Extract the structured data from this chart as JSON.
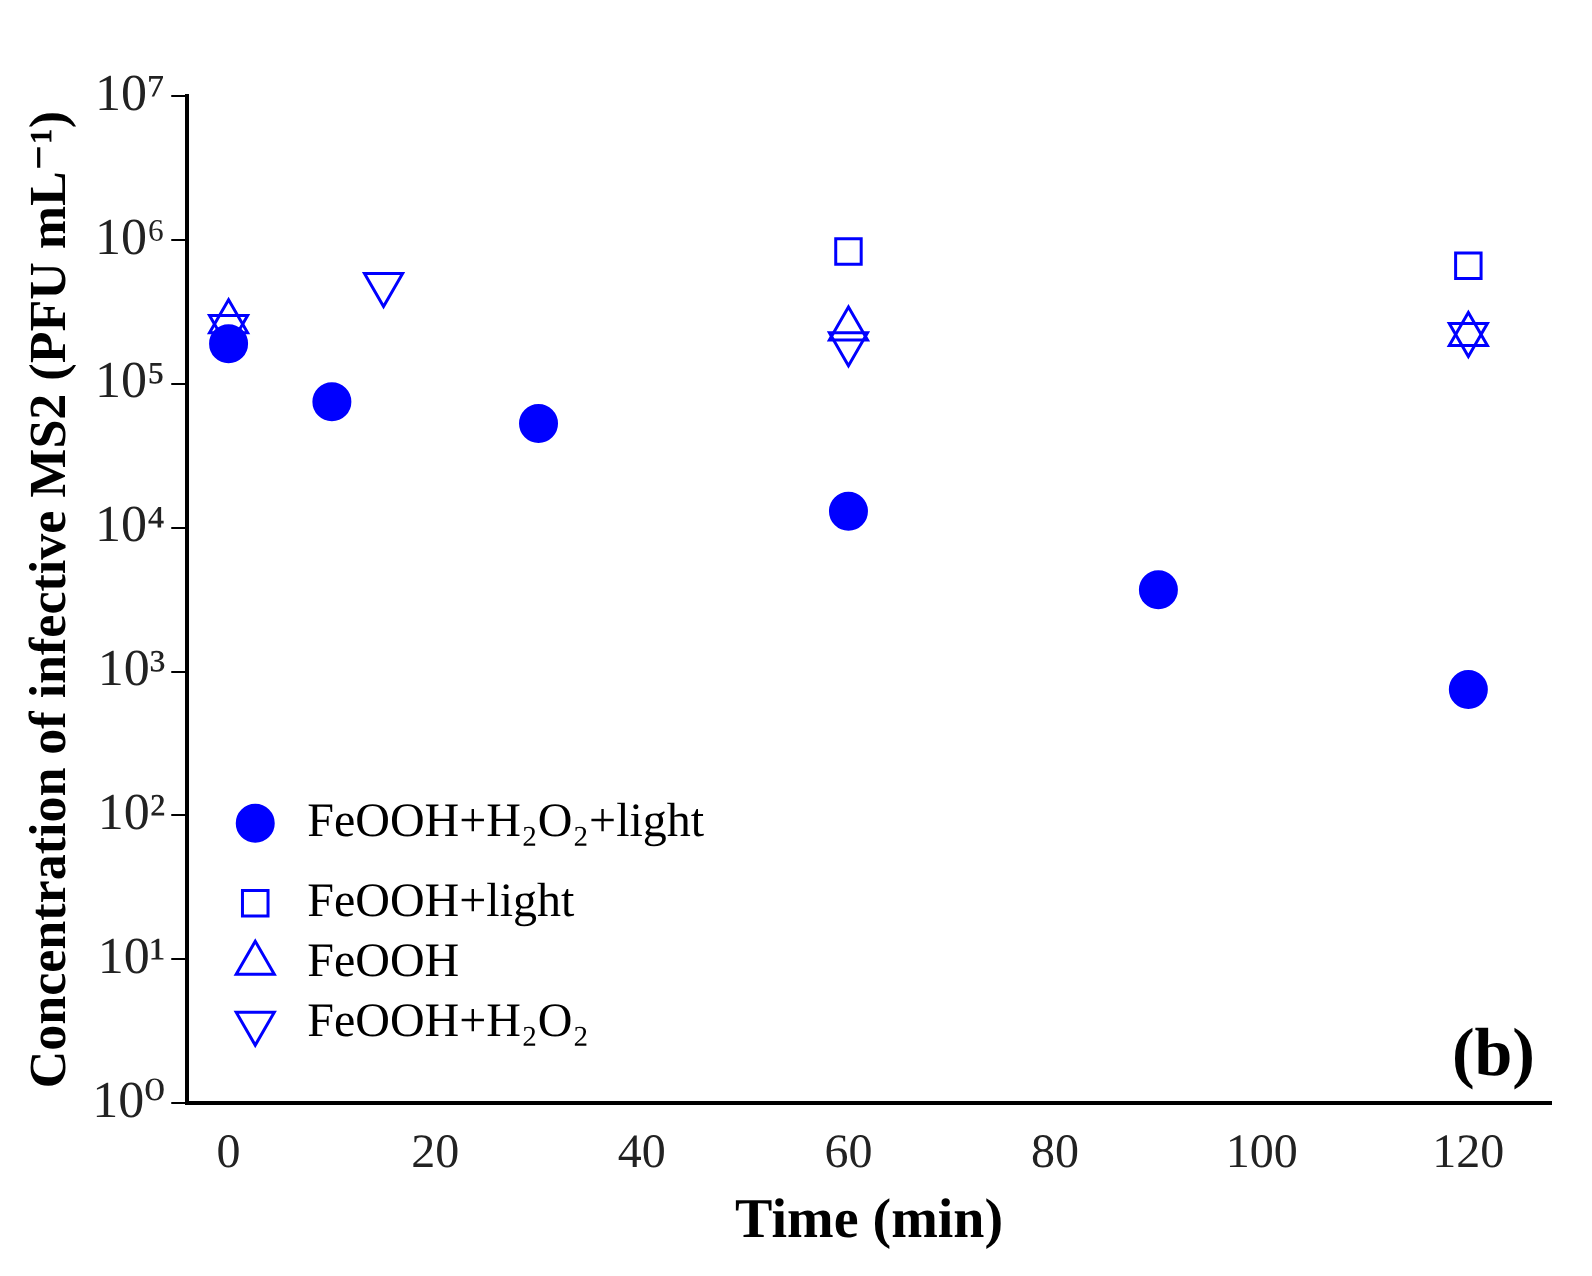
{
  "chart_data": {
    "type": "scatter",
    "xlabel": "Time (min)",
    "ylabel": "Concentration of infective MS2 (PFU mL⁻¹)",
    "annotations": [
      "(b)"
    ],
    "xlim": [
      -4,
      128
    ],
    "xticks": [
      0,
      20,
      40,
      60,
      80,
      100,
      120
    ],
    "ylim": [
      1,
      10000000
    ],
    "log": "y",
    "yticks": [
      {
        "value": 1,
        "label": "10⁰"
      },
      {
        "value": 10,
        "label": "10¹"
      },
      {
        "value": 100,
        "label": "10²"
      },
      {
        "value": 1000,
        "label": "10³"
      },
      {
        "value": 10000,
        "label": "10⁴"
      },
      {
        "value": 100000,
        "label": "10⁵"
      },
      {
        "value": 1000000,
        "label": "10⁶"
      },
      {
        "value": 10000000,
        "label": "10⁷"
      }
    ],
    "grid": false,
    "legend": "bottom left",
    "series": [
      {
        "name": "FeOOH+H₂O₂+light",
        "color": "#0000ff",
        "marker": "circle",
        "x": [
          0,
          10,
          30,
          60,
          90,
          120
        ],
        "values": [
          190000,
          75000,
          53000,
          13000,
          3700,
          750
        ]
      },
      {
        "name": "FeOOH+light",
        "color": "#0000ff",
        "marker": "square",
        "x": [
          60,
          120
        ],
        "values": [
          830000,
          660000
        ]
      },
      {
        "name": "FeOOH",
        "color": "#0000ff",
        "marker": "triangle",
        "x": [
          0,
          60,
          120
        ],
        "values": [
          270000,
          240000,
          220000
        ]
      },
      {
        "name": "FeOOH+H₂O₂",
        "color": "#0000ff",
        "marker": "triangle-down",
        "x": [
          0,
          15,
          60,
          120
        ],
        "values": [
          250000,
          490000,
          190000,
          220000
        ]
      }
    ]
  }
}
